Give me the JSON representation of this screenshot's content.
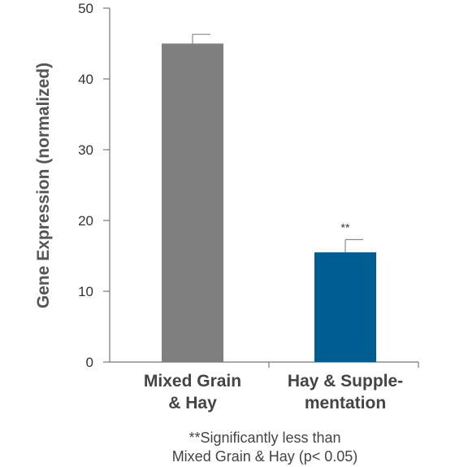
{
  "chart_data": {
    "type": "bar",
    "categories": [
      [
        "Mixed Grain",
        "& Hay"
      ],
      [
        "Hay & Supple-",
        "mentation"
      ]
    ],
    "values": [
      45,
      15.5
    ],
    "errors": [
      1.3,
      1.8
    ],
    "significance": [
      "",
      "**"
    ],
    "colors": [
      "#7f7f7f",
      "#005d92"
    ],
    "ylabel": "Gene Expression (normalized)",
    "xlabel": "",
    "ylim": [
      0,
      50
    ],
    "yticks": [
      0,
      10,
      20,
      30,
      40,
      50
    ],
    "grid": false
  },
  "footnote": {
    "line1": "**Significantly less than",
    "line2": "Mixed Grain & Hay (p< 0.05)"
  }
}
